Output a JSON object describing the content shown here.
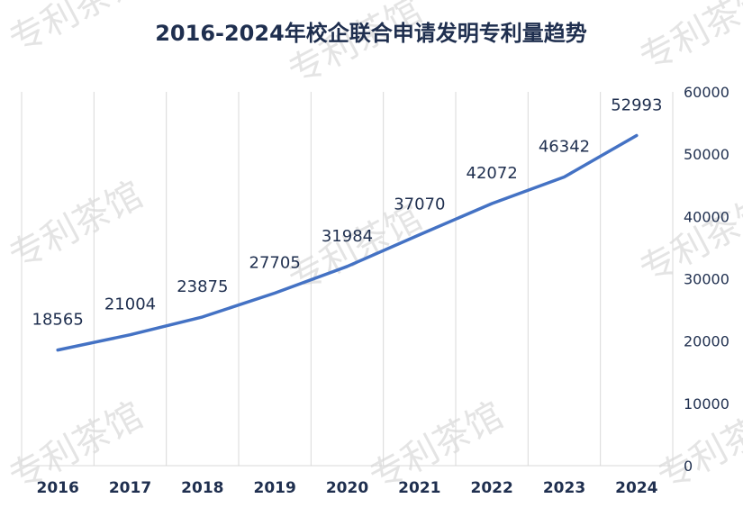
{
  "watermark": {
    "text": "专利茶馆"
  },
  "chart_data": {
    "type": "line",
    "title": "2016-2024年校企联合申请发明专利量趋势",
    "xlabel": "",
    "ylabel": "",
    "categories": [
      "2016",
      "2017",
      "2018",
      "2019",
      "2020",
      "2021",
      "2022",
      "2023",
      "2024"
    ],
    "series": [
      {
        "values": [
          18565,
          21004,
          23875,
          27705,
          31984,
          37070,
          42072,
          46342,
          52993
        ]
      }
    ],
    "ylim": [
      0,
      60000
    ],
    "yticks": [
      0,
      10000,
      20000,
      30000,
      40000,
      50000,
      60000
    ],
    "y_axis_side": "right",
    "grid": "vertical",
    "data_labels": true,
    "legend": "none",
    "colors": {
      "line": "#4472c4",
      "text": "#1f2f4f",
      "grid": "#d9d9d9"
    }
  }
}
